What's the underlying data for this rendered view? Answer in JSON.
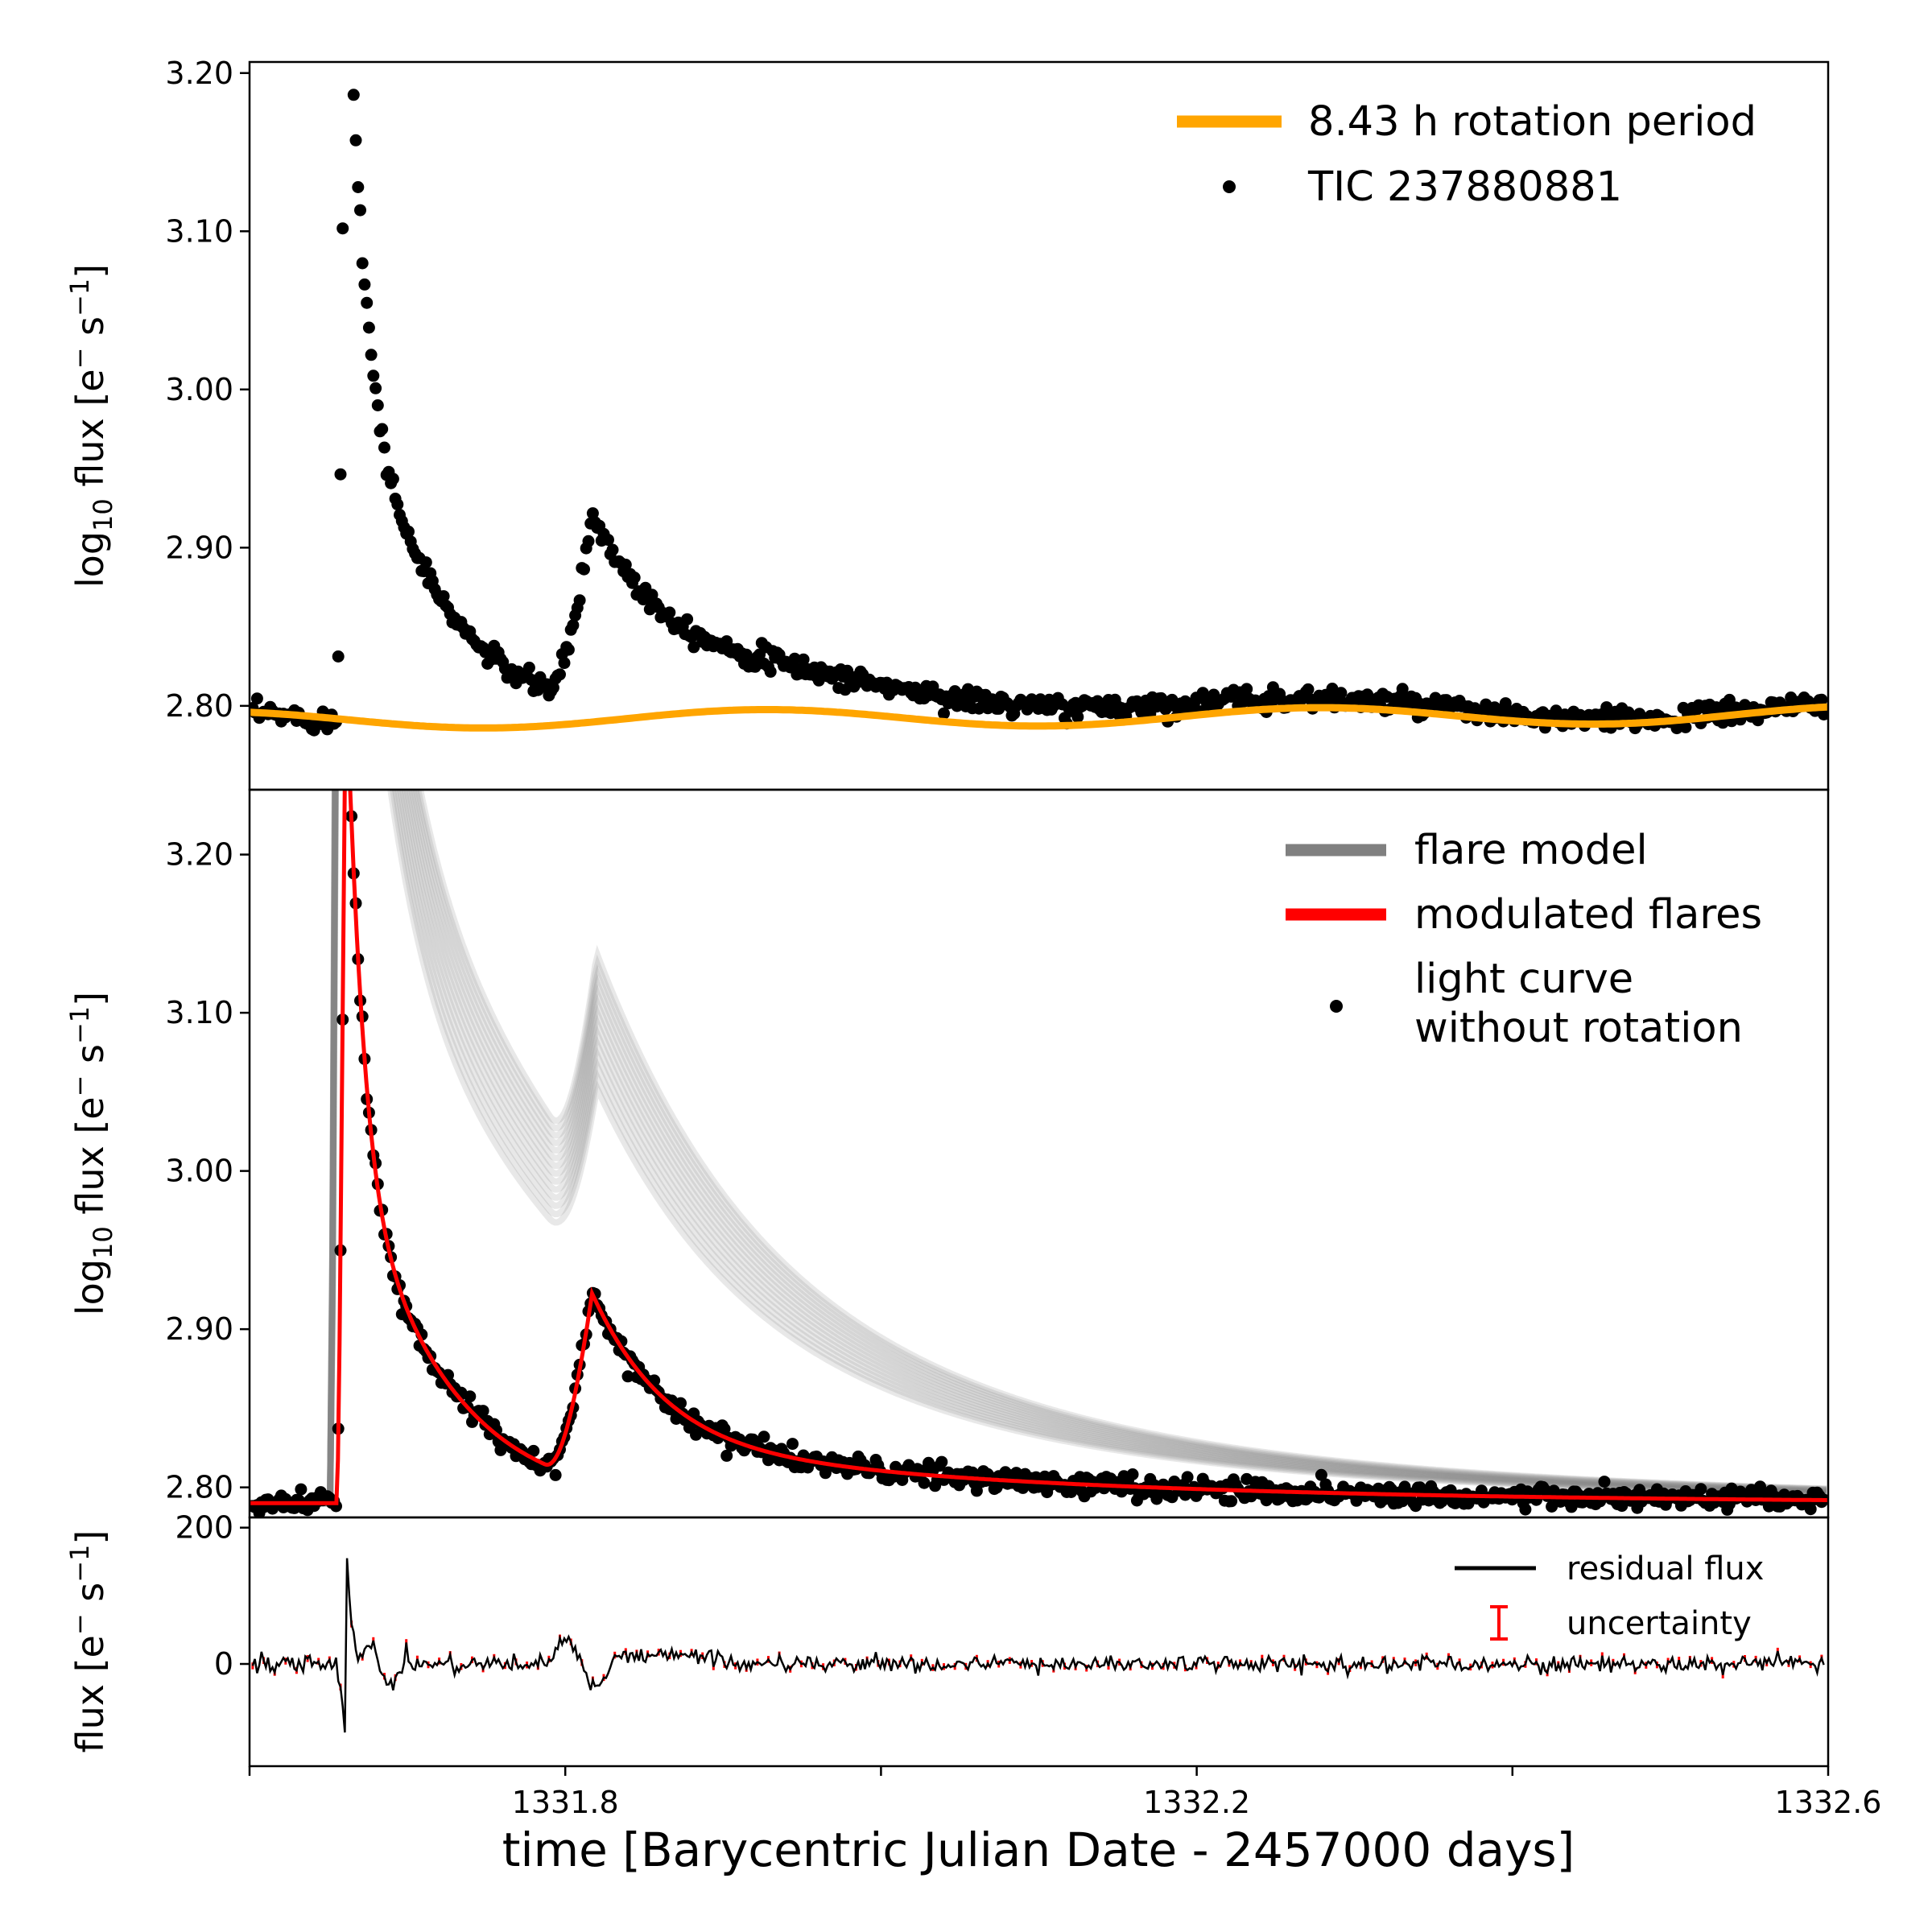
{
  "chart_data": [
    {
      "type": "scatter",
      "panel": "top",
      "ylabel_main": "log",
      "ylabel_sub": "10",
      "ylabel_rest": " flux [e",
      "ylabel_sup1": "−",
      "ylabel_mid": " s",
      "ylabel_sup2": "−1",
      "ylabel_end": "]",
      "ylim": [
        2.747,
        3.207
      ],
      "xlim": [
        1331.6,
        1332.6
      ],
      "yticks": [
        "3.20",
        "3.10",
        "3.00",
        "2.90",
        "2.80"
      ],
      "ytick_values": [
        3.2,
        3.1,
        3.0,
        2.9,
        2.8
      ],
      "series": [
        {
          "name": "8.43 h rotation period",
          "kind": "line",
          "color": "#FFA500",
          "baseline": 2.791,
          "amplitude": 0.0055,
          "period_days": 0.35125
        },
        {
          "name": "TIC 237880881",
          "kind": "scatter",
          "color": "#000000",
          "quiescent": 2.79,
          "flares": [
            {
              "t_peak": 1331.661,
              "amplitude": 1450,
              "t_half": 0.008
            },
            {
              "t_peak": 1331.817,
              "amplitude": 200,
              "t_half": 0.04
            }
          ]
        }
      ],
      "legend": [
        "8.43 h rotation period",
        "TIC 237880881"
      ]
    },
    {
      "type": "line",
      "panel": "middle",
      "ylim": [
        2.781,
        3.241
      ],
      "xlim": [
        1331.6,
        1332.6
      ],
      "yticks": [
        "3.20",
        "3.10",
        "3.00",
        "2.90",
        "2.80"
      ],
      "ytick_values": [
        3.2,
        3.1,
        3.0,
        2.9,
        2.8
      ],
      "series": [
        {
          "name": "flare model",
          "kind": "line",
          "color": "#808080"
        },
        {
          "name": "modulated flares",
          "kind": "line",
          "color": "#FF0000"
        },
        {
          "name": "light curve without rotation",
          "kind": "scatter",
          "color": "#000000"
        }
      ],
      "legend": [
        "flare model",
        "modulated flares",
        "light curve",
        "without rotation"
      ]
    },
    {
      "type": "line",
      "panel": "bottom",
      "ylabel": "flux [e",
      "ylim": [
        -150,
        215
      ],
      "xlim": [
        1331.6,
        1332.6
      ],
      "yticks": [
        "200",
        "0"
      ],
      "ytick_values": [
        200,
        0
      ],
      "xticks": [
        "1331.8",
        "1332.2",
        "1332.6"
      ],
      "xtick_values": [
        1331.8,
        1332.2,
        1332.6
      ],
      "xticks_minor": [
        1331.6,
        1332.0,
        1332.4
      ],
      "series": [
        {
          "name": "residual flux",
          "kind": "line",
          "color": "#000000"
        },
        {
          "name": "uncertainty",
          "kind": "errorbar",
          "color": "#FF0000"
        }
      ],
      "legend": [
        "residual flux",
        "uncertainty"
      ],
      "xlabel": "time [Barycentric Julian Date - 2457000 days]"
    }
  ]
}
